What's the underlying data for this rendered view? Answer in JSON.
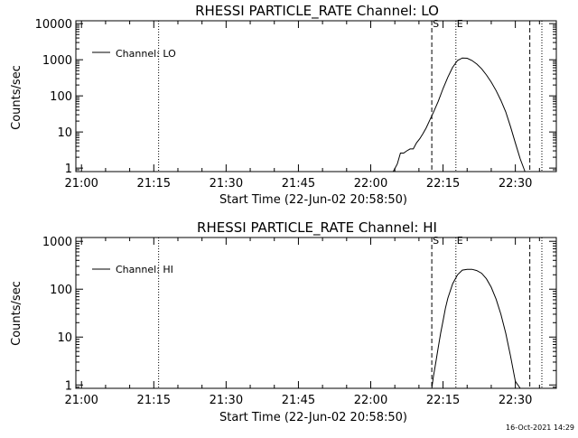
{
  "footer_timestamp": "16-Oct-2021 14:29",
  "chart_data": [
    {
      "type": "line",
      "title": "RHESSI PARTICLE_RATE Channel: LO",
      "xlabel": "Start Time (22-Jun-02 20:58:50)",
      "ylabel": "Counts/sec",
      "yscale": "log",
      "xlim": [
        "20:58:50",
        "22:38:30"
      ],
      "ylim": [
        0.8,
        12000
      ],
      "x_ticks": [
        "21:00",
        "21:15",
        "21:30",
        "21:45",
        "22:00",
        "22:15",
        "22:30"
      ],
      "y_ticks": [
        "1",
        "10",
        "100",
        "1000",
        "10000"
      ],
      "legend": "top-left",
      "series": [
        {
          "name": "Channel: LO",
          "x": [
            "22:04:40",
            "22:05:30",
            "22:06:10",
            "22:06:50",
            "22:07:30",
            "22:08:10",
            "22:08:50",
            "22:09:30",
            "22:10:10",
            "22:10:50",
            "22:11:30",
            "22:12:10",
            "22:13:00",
            "22:14:00",
            "22:15:00",
            "22:16:00",
            "22:17:00",
            "22:18:00",
            "22:19:00",
            "22:20:00",
            "22:21:00",
            "22:22:00",
            "22:23:00",
            "22:24:00",
            "22:25:00",
            "22:26:00",
            "22:27:00",
            "22:28:00",
            "22:29:00",
            "22:30:00",
            "22:31:00",
            "22:32:00"
          ],
          "y": [
            0.8,
            1.3,
            2.6,
            2.6,
            3,
            3.4,
            3.4,
            5,
            6.5,
            9,
            13,
            20,
            35,
            70,
            160,
            330,
            620,
            950,
            1120,
            1100,
            950,
            760,
            560,
            380,
            240,
            140,
            75,
            36,
            14,
            5,
            1.8,
            0.8
          ]
        }
      ],
      "markers": {
        "dotted": [
          "21:16:00",
          "22:17:40",
          "22:35:30"
        ],
        "dashed": [
          "22:12:40",
          "22:33:00"
        ],
        "labels": [
          {
            "text": "S",
            "x": "22:12:40"
          },
          {
            "text": "E",
            "x": "22:17:40"
          }
        ]
      }
    },
    {
      "type": "line",
      "title": "RHESSI PARTICLE_RATE Channel: HI",
      "xlabel": "Start Time (22-Jun-02 20:58:50)",
      "ylabel": "Counts/sec",
      "yscale": "log",
      "xlim": [
        "20:58:50",
        "22:38:30"
      ],
      "ylim": [
        0.85,
        1200
      ],
      "x_ticks": [
        "21:00",
        "21:15",
        "21:30",
        "21:45",
        "22:00",
        "22:15",
        "22:30"
      ],
      "y_ticks": [
        "1",
        "10",
        "100",
        "1000"
      ],
      "legend": "top-left",
      "series": [
        {
          "name": "Channel: HI",
          "x": [
            "22:12:40",
            "22:13:00",
            "22:13:30",
            "22:14:00",
            "22:14:30",
            "22:15:00",
            "22:15:30",
            "22:16:00",
            "22:17:00",
            "22:18:00",
            "22:19:00",
            "22:20:00",
            "22:21:00",
            "22:22:00",
            "22:23:00",
            "22:24:00",
            "22:25:00",
            "22:26:00",
            "22:27:00",
            "22:28:00",
            "22:29:00",
            "22:30:00",
            "22:31:00"
          ],
          "y": [
            0.85,
            1.5,
            3,
            6,
            12,
            22,
            40,
            65,
            130,
            200,
            250,
            260,
            260,
            245,
            215,
            165,
            110,
            62,
            30,
            12,
            4,
            1.2,
            0.85
          ]
        }
      ],
      "markers": {
        "dotted": [
          "21:16:00",
          "22:17:40",
          "22:35:30"
        ],
        "dashed": [
          "22:12:40",
          "22:33:00"
        ],
        "labels": [
          {
            "text": "S",
            "x": "22:12:40"
          },
          {
            "text": "E",
            "x": "22:17:40"
          }
        ]
      }
    }
  ]
}
